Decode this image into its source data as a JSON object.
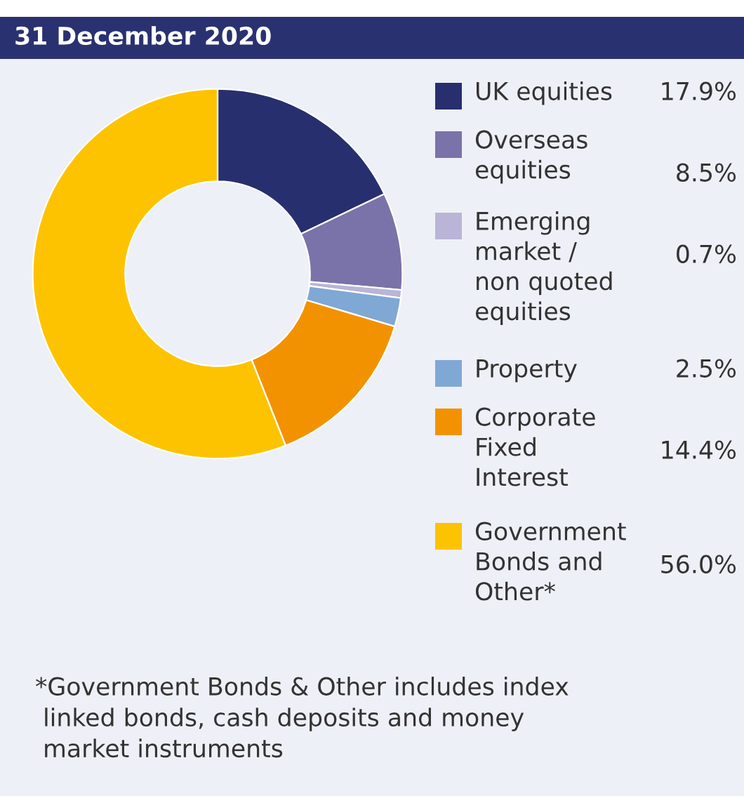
{
  "chart_data": {
    "type": "donut",
    "title": "31 December 2020",
    "categories": [
      "UK equities",
      "Overseas\nequities",
      "Emerging\nmarket /\nnon quoted\nequities",
      "Property",
      "Corporate\nFixed\nInterest",
      "Government\nBonds and\nOther*"
    ],
    "values": [
      17.9,
      8.5,
      0.7,
      2.5,
      14.4,
      56.0
    ],
    "value_labels": [
      "17.9%",
      "8.5%",
      "0.7%",
      "2.5%",
      "14.4%",
      "56.0%"
    ],
    "colors": [
      "#272f6e",
      "#7a73a9",
      "#bab5d6",
      "#80a8d5",
      "#f39200",
      "#fdc300"
    ],
    "legend": "right",
    "annotations": [
      "*Government Bonds & Other includes index\n linked bonds, cash deposits and money\n market instruments"
    ]
  }
}
